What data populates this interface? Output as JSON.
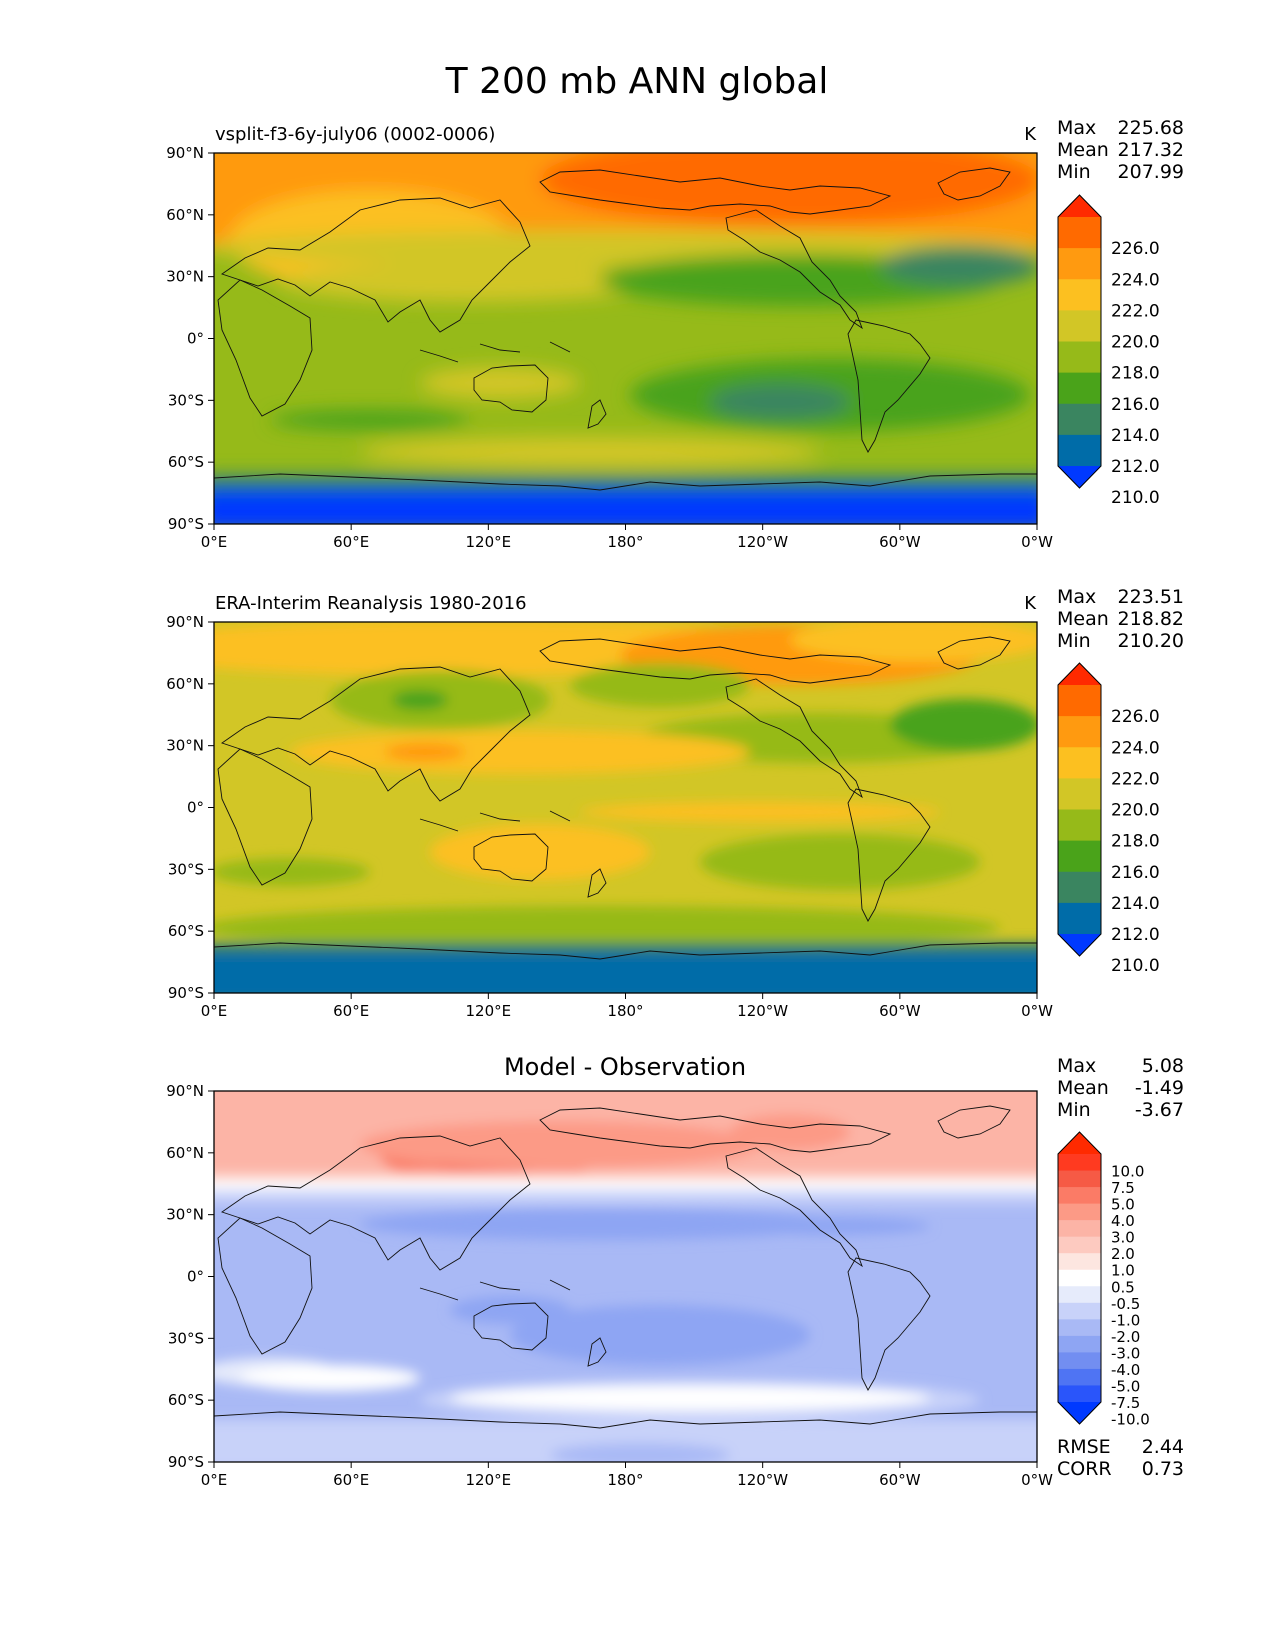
{
  "figure": {
    "title": "T 200 mb ANN global"
  },
  "axes": {
    "lat_ticks": [
      "90°N",
      "60°N",
      "30°N",
      "0°",
      "30°S",
      "60°S",
      "90°S"
    ],
    "lon_ticks": [
      "0°E",
      "60°E",
      "120°E",
      "180°",
      "120°W",
      "60°W",
      "0°W"
    ]
  },
  "panels": [
    {
      "title_left": "vsplit-f3-6y-july06 (0002-0006)",
      "units": "K",
      "stats": {
        "max_label": "Max",
        "max": "225.68",
        "mean_label": "Mean",
        "mean": "217.32",
        "min_label": "Min",
        "min": "207.99"
      },
      "colorbar": {
        "labels": [
          "226.0",
          "224.0",
          "222.0",
          "220.0",
          "218.0",
          "216.0",
          "214.0",
          "212.0",
          "210.0"
        ],
        "colors": [
          "#ff2a00",
          "#ff6a00",
          "#ff9a10",
          "#fcc020",
          "#d2c626",
          "#96ba19",
          "#4aa31a",
          "#3a8560",
          "#006ca8",
          "#0039ff"
        ]
      }
    },
    {
      "title_left": "ERA-Interim Reanalysis 1980-2016",
      "units": "K",
      "stats": {
        "max_label": "Max",
        "max": "223.51",
        "mean_label": "Mean",
        "mean": "218.82",
        "min_label": "Min",
        "min": "210.20"
      },
      "colorbar": {
        "labels": [
          "226.0",
          "224.0",
          "222.0",
          "220.0",
          "218.0",
          "216.0",
          "214.0",
          "212.0",
          "210.0"
        ],
        "colors": [
          "#ff2a00",
          "#ff6a00",
          "#ff9a10",
          "#fcc020",
          "#d2c626",
          "#96ba19",
          "#4aa31a",
          "#3a8560",
          "#006ca8",
          "#0039ff"
        ]
      }
    },
    {
      "title_center": "Model - Observation",
      "stats": {
        "max_label": "Max",
        "max": "5.08",
        "mean_label": "Mean",
        "mean": "-1.49",
        "min_label": "Min",
        "min": "-3.67"
      },
      "extra_stats": {
        "rmse_label": "RMSE",
        "rmse": "2.44",
        "corr_label": "CORR",
        "corr": "0.73"
      },
      "colorbar": {
        "labels": [
          "10.0",
          "7.5",
          "5.0",
          "4.0",
          "3.0",
          "2.0",
          "1.0",
          "0.5",
          "-0.5",
          "-1.0",
          "-2.0",
          "-3.0",
          "-4.0",
          "-5.0",
          "-7.5",
          "-10.0"
        ],
        "colors": [
          "#ff2a00",
          "#ff3a20",
          "#f65a45",
          "#fb7b66",
          "#fc9a86",
          "#fcb4a6",
          "#fdcac0",
          "#fde6e0",
          "#ffffff",
          "#e6ebfb",
          "#c8d2f9",
          "#a9b9f5",
          "#8ea5f3",
          "#728ef1",
          "#4f74f3",
          "#2a55fa",
          "#0039ff"
        ]
      }
    }
  ]
}
